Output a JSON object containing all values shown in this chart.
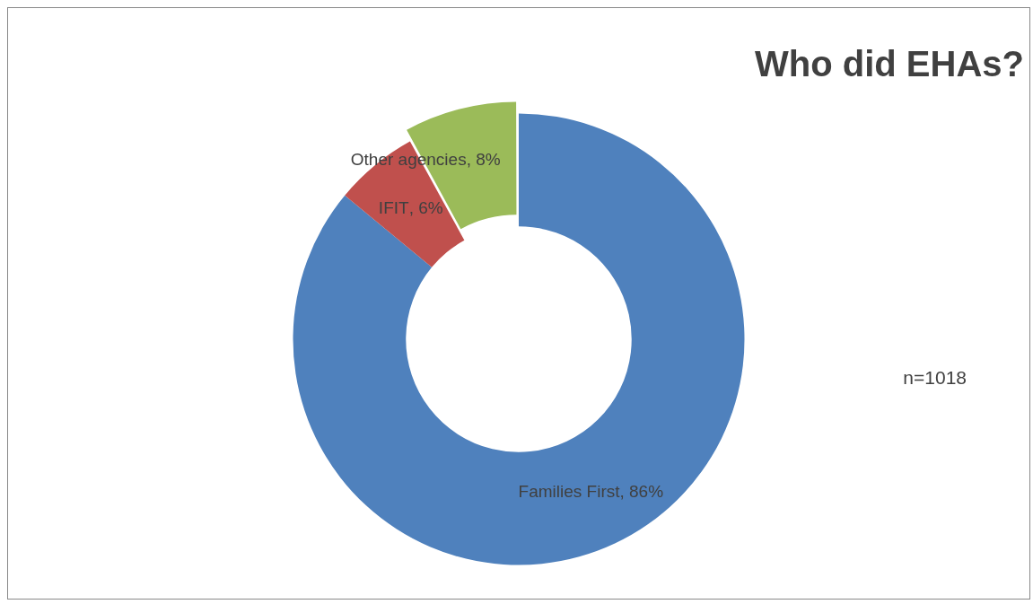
{
  "chart_data": {
    "type": "donut",
    "title": "Who did EHAs?",
    "annotations": [
      "n=1018"
    ],
    "categories": [
      "Families First",
      "IFIT",
      "Other agencies"
    ],
    "values": [
      86,
      6,
      8
    ],
    "colors": [
      "#4f81bd",
      "#c0504d",
      "#9bbb59"
    ],
    "value_labels": [
      ", 86%",
      ", 6%",
      ", 8%"
    ],
    "legend": false
  }
}
